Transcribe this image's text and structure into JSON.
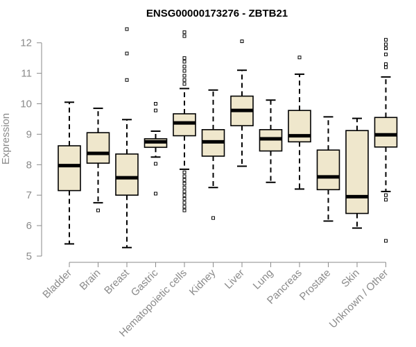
{
  "chart_data": {
    "type": "boxplot",
    "title": "ENSG00000173276 - ZBTB21",
    "xlabel": "",
    "ylabel": "Expression",
    "ylim": [
      5,
      12.5
    ],
    "yticks": [
      5,
      6,
      7,
      8,
      9,
      10,
      11,
      12
    ],
    "grid": false,
    "colors": {
      "box_fill": "#efe7cc",
      "stroke": "#000000",
      "axis": "#8a8a8a"
    },
    "categories": [
      "Bladder",
      "Brain",
      "Breast",
      "Gastric",
      "Hematopoietic cells",
      "Kidney",
      "Liver",
      "Lung",
      "Pancreas",
      "Prostate",
      "Skin",
      "Unknown / Other"
    ],
    "boxes": [
      {
        "name": "Bladder",
        "whisker_low": 5.4,
        "q1": 7.15,
        "median": 7.97,
        "q3": 8.62,
        "whisker_high": 10.05,
        "outliers": []
      },
      {
        "name": "Brain",
        "whisker_low": 6.75,
        "q1": 8.05,
        "median": 8.37,
        "q3": 9.05,
        "whisker_high": 9.85,
        "outliers": [
          6.5
        ]
      },
      {
        "name": "Breast",
        "whisker_low": 5.28,
        "q1": 7.0,
        "median": 7.57,
        "q3": 8.35,
        "whisker_high": 9.48,
        "outliers": [
          10.78,
          11.65,
          12.45
        ]
      },
      {
        "name": "Gastric",
        "whisker_low": 8.25,
        "q1": 8.57,
        "median": 8.75,
        "q3": 8.85,
        "whisker_high": 9.1,
        "outliers": [
          7.05,
          8.03,
          9.78,
          10.0
        ]
      },
      {
        "name": "Hematopoietic cells",
        "whisker_low": 7.85,
        "q1": 8.95,
        "median": 9.37,
        "q3": 9.67,
        "whisker_high": 10.5,
        "outliers": [
          6.5,
          6.62,
          6.75,
          6.88,
          7.0,
          7.12,
          7.25,
          7.38,
          7.5,
          7.62,
          7.75,
          10.65,
          10.78,
          10.92,
          11.08,
          11.22,
          11.38,
          11.5,
          12.22,
          12.35
        ]
      },
      {
        "name": "Kidney",
        "whisker_low": 7.25,
        "q1": 8.28,
        "median": 8.75,
        "q3": 9.15,
        "whisker_high": 10.45,
        "outliers": [
          6.25
        ]
      },
      {
        "name": "Liver",
        "whisker_low": 7.95,
        "q1": 9.28,
        "median": 9.78,
        "q3": 10.25,
        "whisker_high": 11.1,
        "outliers": [
          12.05
        ]
      },
      {
        "name": "Lung",
        "whisker_low": 7.42,
        "q1": 8.45,
        "median": 8.85,
        "q3": 9.15,
        "whisker_high": 10.12,
        "outliers": []
      },
      {
        "name": "Pancreas",
        "whisker_low": 7.2,
        "q1": 8.75,
        "median": 8.95,
        "q3": 9.78,
        "whisker_high": 10.97,
        "outliers": [
          11.52
        ]
      },
      {
        "name": "Prostate",
        "whisker_low": 6.15,
        "q1": 7.18,
        "median": 7.6,
        "q3": 8.48,
        "whisker_high": 9.57,
        "outliers": []
      },
      {
        "name": "Skin",
        "whisker_low": 5.92,
        "q1": 6.4,
        "median": 6.95,
        "q3": 9.12,
        "whisker_high": 9.52,
        "outliers": []
      },
      {
        "name": "Unknown / Other",
        "whisker_low": 7.12,
        "q1": 8.58,
        "median": 8.98,
        "q3": 9.55,
        "whisker_high": 10.88,
        "outliers": [
          5.5,
          6.85,
          7.0,
          11.2,
          11.3,
          11.62,
          11.82,
          11.95,
          12.1
        ]
      }
    ]
  }
}
